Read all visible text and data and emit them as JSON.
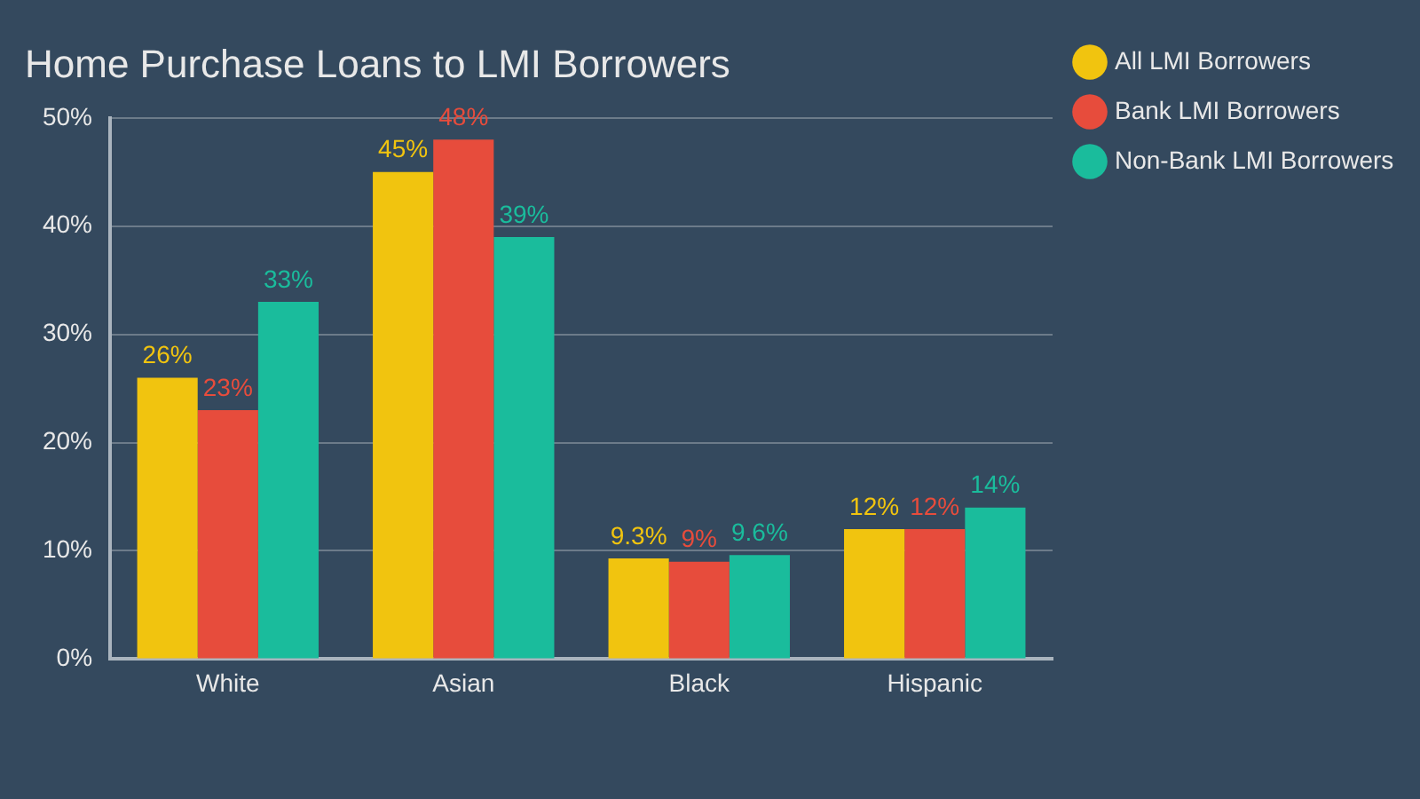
{
  "chart_data": {
    "type": "bar",
    "title": "Home Purchase Loans to LMI Borrowers",
    "categories": [
      "White",
      "Asian",
      "Black",
      "Hispanic"
    ],
    "series": [
      {
        "name": "All LMI Borrowers",
        "color": "#f1c40f",
        "values": [
          26,
          45,
          9.3,
          12
        ],
        "value_labels": [
          "26%",
          "45%",
          "9.3%",
          "12%"
        ]
      },
      {
        "name": "Bank LMI Borrowers",
        "color": "#e74c3c",
        "values": [
          23,
          48,
          9,
          12
        ],
        "value_labels": [
          "23%",
          "48%",
          "9%",
          "12%"
        ]
      },
      {
        "name": "Non-Bank LMI Borrowers",
        "color": "#1abc9c",
        "values": [
          33,
          39,
          9.6,
          14
        ],
        "value_labels": [
          "33%",
          "39%",
          "9.6%",
          "14%"
        ]
      }
    ],
    "ylim": [
      0,
      50
    ],
    "yticks": [
      {
        "value": 0,
        "label": "0%"
      },
      {
        "value": 10,
        "label": "10%"
      },
      {
        "value": 20,
        "label": "20%"
      },
      {
        "value": 30,
        "label": "30%"
      },
      {
        "value": 40,
        "label": "40%"
      },
      {
        "value": 50,
        "label": "50%"
      }
    ],
    "grid": "y",
    "legend": "top right"
  }
}
